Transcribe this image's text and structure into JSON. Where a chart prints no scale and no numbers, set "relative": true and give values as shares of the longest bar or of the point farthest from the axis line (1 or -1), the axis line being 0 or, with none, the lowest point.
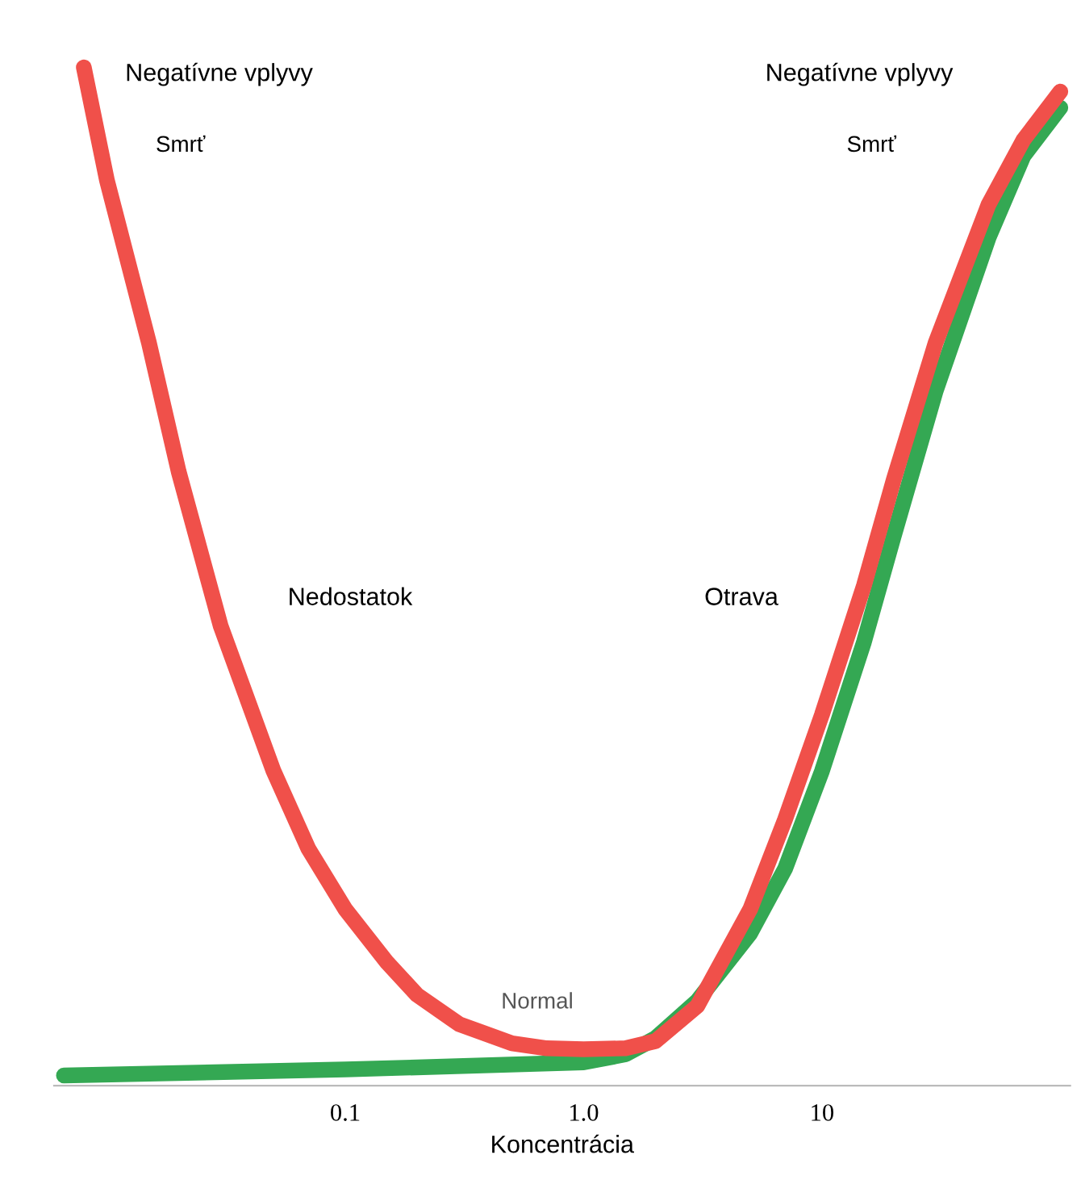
{
  "chart_data": {
    "type": "line",
    "relative": true,
    "log": "x",
    "xlabel": "Koncentrácia",
    "xlim": [
      0.006,
      110
    ],
    "xticks": [
      0.1,
      {
        "value": 1,
        "label": "1.0"
      },
      10
    ],
    "grid": false,
    "legend": false,
    "marker": "none",
    "line_style": "solid",
    "annotations": [
      "Negatívne vplyvy",
      "Smrť",
      "Negatívne vplyvy",
      "Smrť",
      "Nedostatok",
      "Otrava",
      "Normal"
    ],
    "series": [
      {
        "color": "#34a853",
        "x": [
          0.0066,
          0.1,
          1,
          1.5,
          2,
          3,
          5,
          7,
          10,
          15,
          20,
          30,
          50,
          70,
          100
        ],
        "values": [
          0,
          0.006,
          0.013,
          0.021,
          0.037,
          0.074,
          0.141,
          0.205,
          0.302,
          0.43,
          0.535,
          0.679,
          0.831,
          0.912,
          0.96
        ]
      },
      {
        "color": "#f0504a",
        "x": [
          0.008,
          0.01,
          0.015,
          0.02,
          0.03,
          0.05,
          0.07,
          0.1,
          0.15,
          0.2,
          0.3,
          0.5,
          0.7,
          1,
          1.5,
          2,
          3,
          5,
          7,
          10,
          15,
          20,
          30,
          50,
          70,
          100
        ],
        "values": [
          1.0,
          0.888,
          0.727,
          0.599,
          0.446,
          0.302,
          0.225,
          0.165,
          0.112,
          0.08,
          0.051,
          0.032,
          0.027,
          0.026,
          0.027,
          0.034,
          0.069,
          0.165,
          0.254,
          0.358,
          0.486,
          0.591,
          0.727,
          0.864,
          0.928,
          0.976
        ]
      }
    ]
  }
}
